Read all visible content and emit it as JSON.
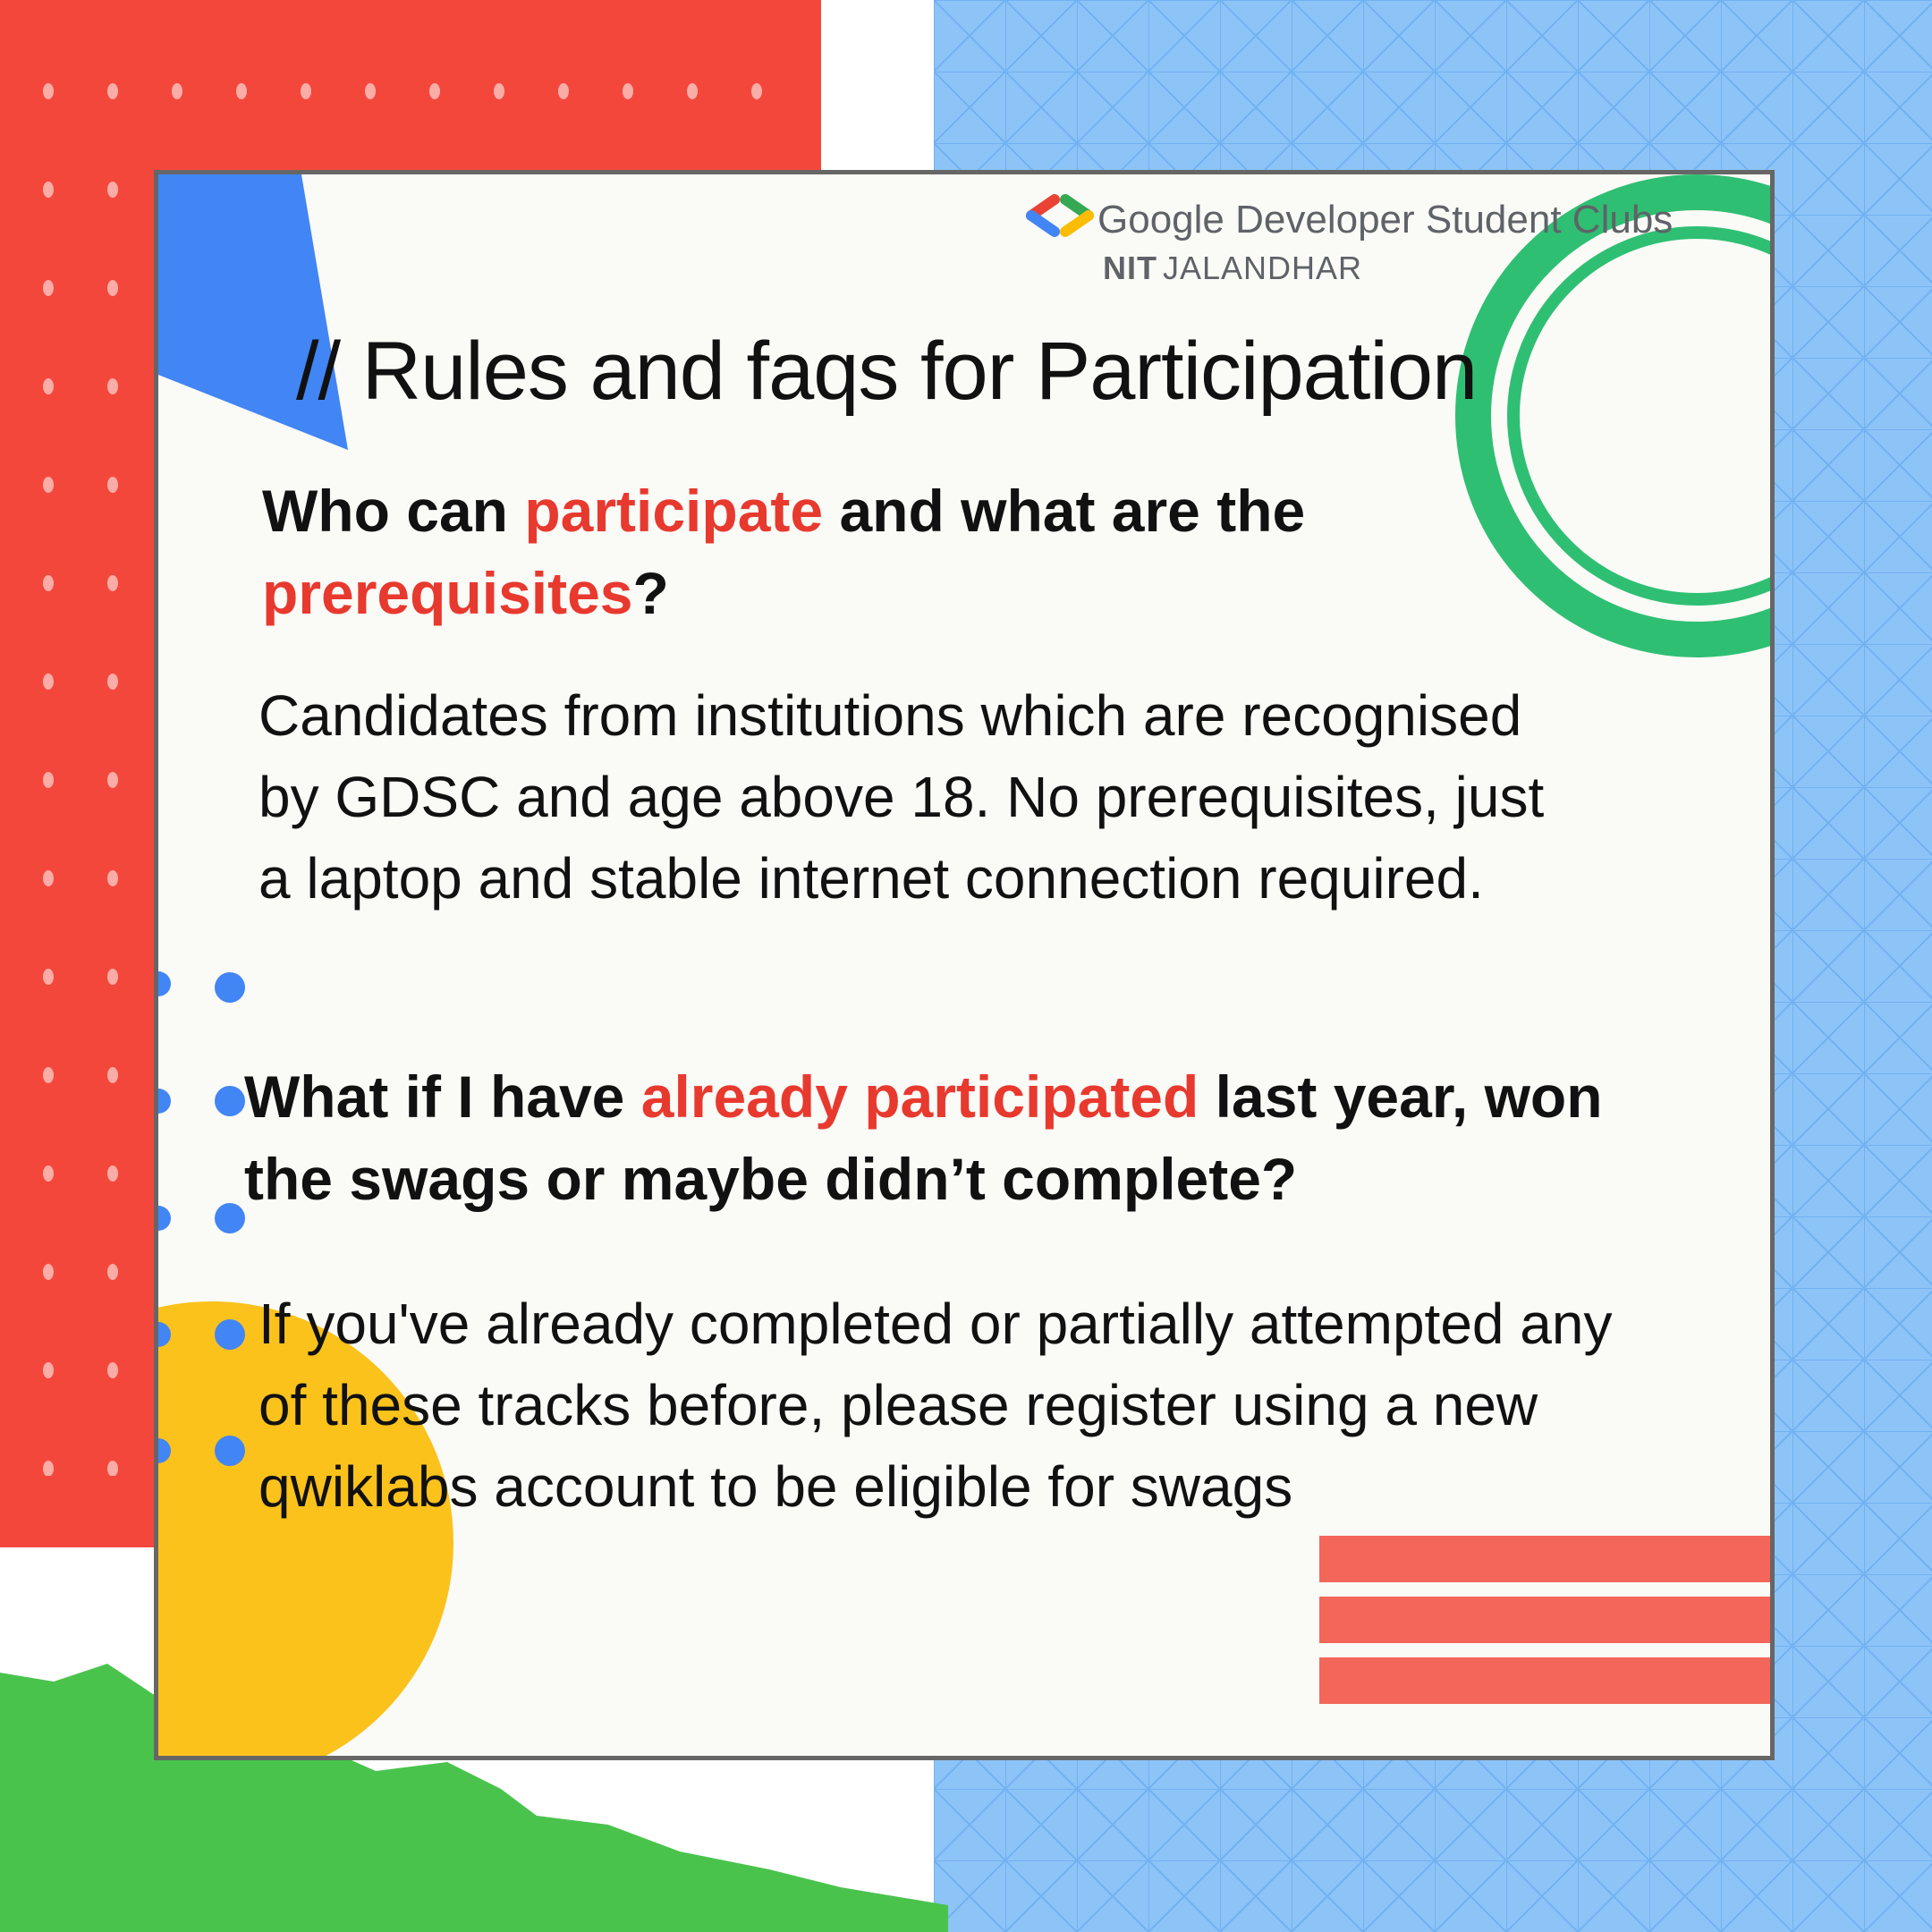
{
  "brand": {
    "name": "Google Developer Student Clubs",
    "chapter_bold": "NIT",
    "chapter_rest": "JALANDHAR"
  },
  "title": "// Rules and faqs for Participation",
  "faq": [
    {
      "question_parts": [
        "Who can ",
        "participate",
        " and what are the ",
        "prerequisites",
        "?"
      ],
      "answer": "Candidates from institutions which are recognised by GDSC and age above 18. No prerequisites, just a laptop and stable internet connection required."
    },
    {
      "question_parts": [
        "What if I have ",
        "already participated",
        " last year, won the swags or maybe didn’t complete?"
      ],
      "answer": "If you've already completed or partially attempted any of these tracks before, please register using a new qwiklabs account to be eligible for swags"
    }
  ],
  "colors": {
    "red": "#f4473c",
    "blue": "#8dc4f7",
    "green": "#4ac34d",
    "yellow": "#fbc21c",
    "accent_text": "#e8392f",
    "ring_green": "#2fbf73",
    "triangle_blue": "#4285f4",
    "stripe_coral": "#f4665a"
  }
}
